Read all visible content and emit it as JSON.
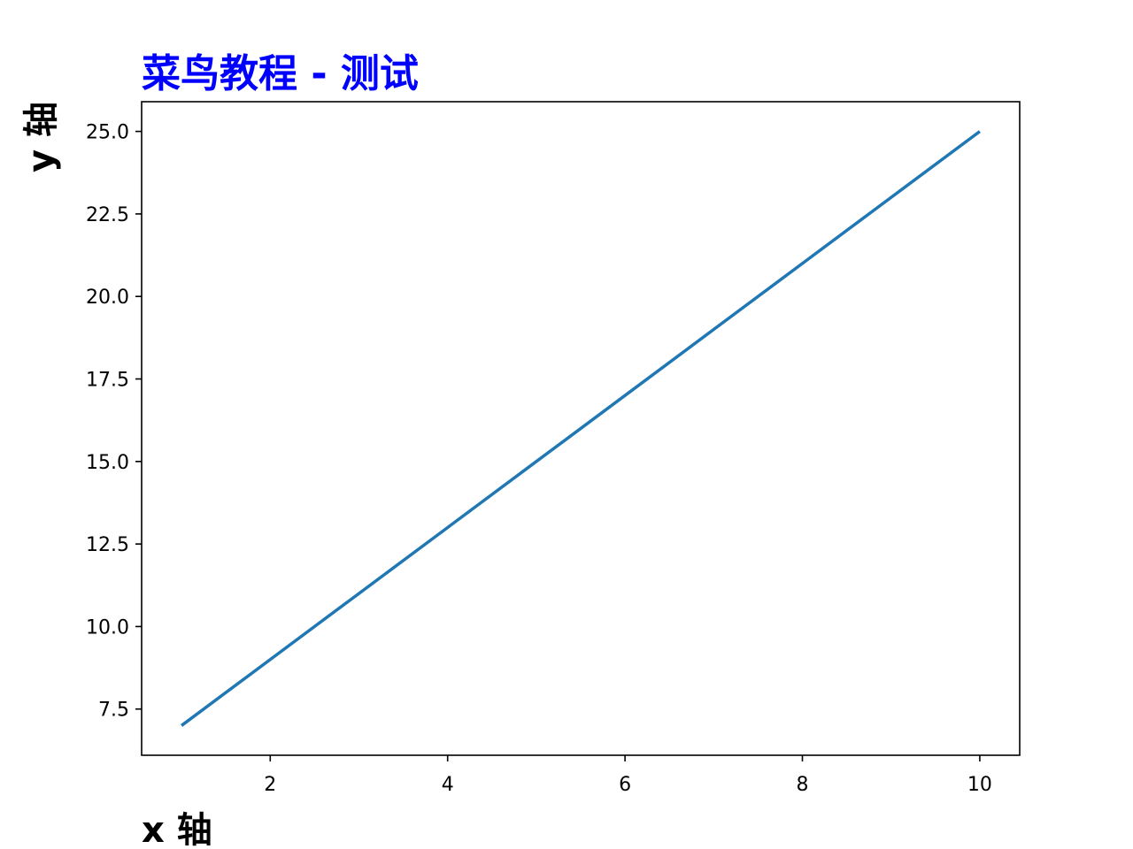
{
  "chart_data": {
    "type": "line",
    "title": "菜鸟教程 - 测试",
    "xlabel": "x 轴",
    "ylabel": "y 轴",
    "title_color": "#0000ff",
    "x": [
      1,
      2,
      3,
      4,
      5,
      6,
      7,
      8,
      9,
      10
    ],
    "series": [
      {
        "values": [
          7,
          9,
          11,
          13,
          15,
          17,
          19,
          21,
          23,
          25
        ],
        "color": "#1f77b4"
      }
    ],
    "xlim": [
      0.55,
      10.45
    ],
    "ylim": [
      6.1,
      25.9
    ],
    "xticks": [
      2,
      4,
      6,
      8,
      10
    ],
    "xtick_labels": [
      "2",
      "4",
      "6",
      "8",
      "10"
    ],
    "yticks": [
      7.5,
      10,
      12.5,
      15,
      17.5,
      20,
      22.5,
      25
    ],
    "ytick_labels": [
      "7.5",
      "10.0",
      "12.5",
      "15.0",
      "17.5",
      "20.0",
      "22.5",
      "25.0"
    ],
    "grid": false
  }
}
